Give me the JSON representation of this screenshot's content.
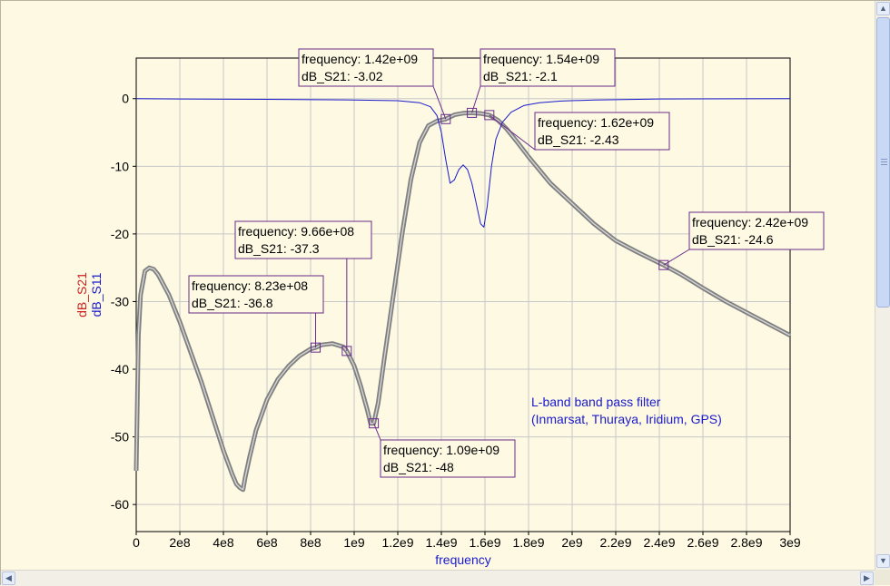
{
  "chart_data": {
    "type": "line",
    "xlabel": "frequency",
    "ylabel_series": [
      "dB_S21",
      "dB_S11"
    ],
    "xlim": [
      0,
      3000000000
    ],
    "ylim": [
      -64,
      6
    ],
    "x_ticks": [
      0,
      200000000,
      400000000,
      600000000,
      800000000,
      1000000000,
      1200000000,
      1400000000,
      1600000000,
      1800000000,
      2000000000,
      2200000000,
      2400000000,
      2600000000,
      2800000000,
      3000000000
    ],
    "x_tick_labels": [
      "0",
      "2e8",
      "4e8",
      "6e8",
      "8e8",
      "1e9",
      "1.2e9",
      "1.4e9",
      "1.6e9",
      "1.8e9",
      "2e9",
      "2.2e9",
      "2.4e9",
      "2.6e9",
      "2.8e9",
      "3e9"
    ],
    "y_ticks": [
      0,
      -10,
      -20,
      -30,
      -40,
      -50,
      -60
    ],
    "y_tick_labels": [
      "0",
      "-10",
      "-20",
      "-30",
      "-40",
      "-50",
      "-60"
    ],
    "grid": true,
    "annotation": [
      "L-band band pass filter",
      "(Inmarsat, Thuraya, Iridium, GPS)"
    ],
    "series": [
      {
        "name": "dB_S21",
        "color": "#808080",
        "x": [
          0,
          10000000,
          20000000,
          40000000,
          60000000,
          80000000,
          100000000,
          150000000,
          200000000,
          250000000,
          300000000,
          350000000,
          400000000,
          440000000,
          460000000,
          475000000,
          490000000,
          500000000,
          520000000,
          550000000,
          600000000,
          650000000,
          700000000,
          750000000,
          800000000,
          823000000,
          850000000,
          900000000,
          950000000,
          966000000,
          1000000000,
          1030000000,
          1060000000,
          1075000000,
          1090000000,
          1110000000,
          1140000000,
          1180000000,
          1220000000,
          1260000000,
          1300000000,
          1340000000,
          1380000000,
          1420000000,
          1460000000,
          1500000000,
          1540000000,
          1580000000,
          1620000000,
          1660000000,
          1700000000,
          1750000000,
          1800000000,
          1900000000,
          2000000000,
          2100000000,
          2200000000,
          2300000000,
          2420000000,
          2500000000,
          2600000000,
          2700000000,
          2800000000,
          2900000000,
          3000000000
        ],
        "values": [
          -55,
          -35,
          -29,
          -25.5,
          -25,
          -25.2,
          -26,
          -29,
          -33,
          -37.5,
          -42,
          -47,
          -52,
          -55.5,
          -57,
          -57.5,
          -57.8,
          -56,
          -53,
          -49,
          -44.5,
          -41.5,
          -39.5,
          -38,
          -37,
          -36.8,
          -36.4,
          -36.2,
          -36.7,
          -37.3,
          -39.5,
          -42.5,
          -46,
          -48,
          -48,
          -45,
          -38,
          -29,
          -20,
          -12,
          -6.5,
          -4,
          -3.3,
          -3.02,
          -2.4,
          -2.15,
          -2.1,
          -2.2,
          -2.43,
          -3.2,
          -4.5,
          -6.5,
          -8.6,
          -12.5,
          -15.5,
          -18.5,
          -21,
          -22.7,
          -24.6,
          -26,
          -28,
          -29.9,
          -31.6,
          -33.3,
          -35
        ]
      },
      {
        "name": "dB_S11",
        "color": "#1a1acc",
        "x": [
          0,
          200000000,
          600000000,
          1000000000,
          1200000000,
          1300000000,
          1350000000,
          1380000000,
          1400000000,
          1420000000,
          1440000000,
          1460000000,
          1480000000,
          1500000000,
          1520000000,
          1540000000,
          1560000000,
          1580000000,
          1595000000,
          1610000000,
          1630000000,
          1650000000,
          1680000000,
          1720000000,
          1780000000,
          1850000000,
          1950000000,
          2100000000,
          2400000000,
          3000000000
        ],
        "values": [
          0,
          -0.05,
          -0.1,
          -0.2,
          -0.3,
          -0.6,
          -1.2,
          -2.5,
          -5,
          -9,
          -12.5,
          -12,
          -10.5,
          -9.8,
          -10.5,
          -12.5,
          -15.5,
          -18.5,
          -19,
          -16,
          -10,
          -6,
          -3.5,
          -2,
          -1,
          -0.6,
          -0.35,
          -0.2,
          -0.05,
          0
        ]
      }
    ],
    "markers": [
      {
        "freq": 823000000,
        "value": -36.8,
        "label_freq": "frequency: 8.23e+08",
        "label_val": "dB_S21: -36.8"
      },
      {
        "freq": 966000000,
        "value": -37.3,
        "label_freq": "frequency: 9.66e+08",
        "label_val": "dB_S21: -37.3"
      },
      {
        "freq": 1090000000,
        "value": -48,
        "label_freq": "frequency: 1.09e+09",
        "label_val": "dB_S21: -48"
      },
      {
        "freq": 1420000000,
        "value": -3.02,
        "label_freq": "frequency: 1.42e+09",
        "label_val": "dB_S21: -3.02"
      },
      {
        "freq": 1540000000,
        "value": -2.1,
        "label_freq": "frequency: 1.54e+09",
        "label_val": "dB_S21: -2.1"
      },
      {
        "freq": 1620000000,
        "value": -2.43,
        "label_freq": "frequency: 1.62e+09",
        "label_val": "dB_S21: -2.43"
      },
      {
        "freq": 2420000000,
        "value": -24.6,
        "label_freq": "frequency: 2.42e+09",
        "label_val": "dB_S21: -24.6"
      }
    ]
  }
}
